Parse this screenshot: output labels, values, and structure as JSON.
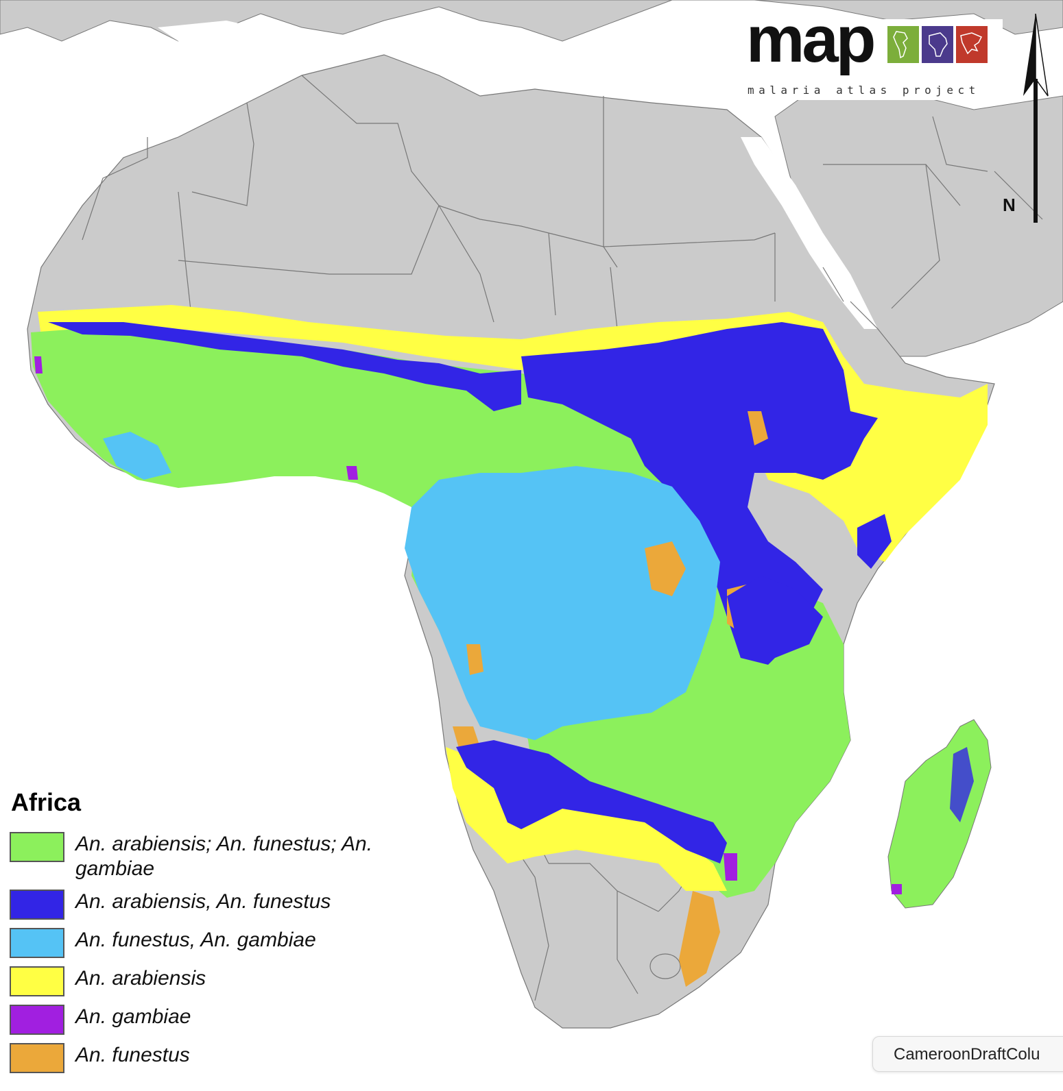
{
  "logo": {
    "wordmark": "map",
    "subtitle": "malaria atlas project",
    "tile_colors": [
      "#7cae3b",
      "#4b3a8c",
      "#c0392b"
    ]
  },
  "north_arrow": {
    "label": "N"
  },
  "legend": {
    "title": "Africa",
    "items": [
      {
        "label": "An. arabiensis; An. funestus; An. gambiae",
        "color": "#8cf05c"
      },
      {
        "label": "An. arabiensis, An. funestus",
        "color": "#3225e6"
      },
      {
        "label": "An. funestus, An. gambiae",
        "color": "#55c3f5"
      },
      {
        "label": "An. arabiensis",
        "color": "#ffff44"
      },
      {
        "label": "An. gambiae",
        "color": "#a11fe0"
      },
      {
        "label": "An. funestus",
        "color": "#eba83a"
      }
    ]
  },
  "map_colors": {
    "land": "#cbcbcb",
    "water": "#ffffff",
    "border": "#777777"
  },
  "file_chip": {
    "label": "CameroonDraftColu"
  }
}
